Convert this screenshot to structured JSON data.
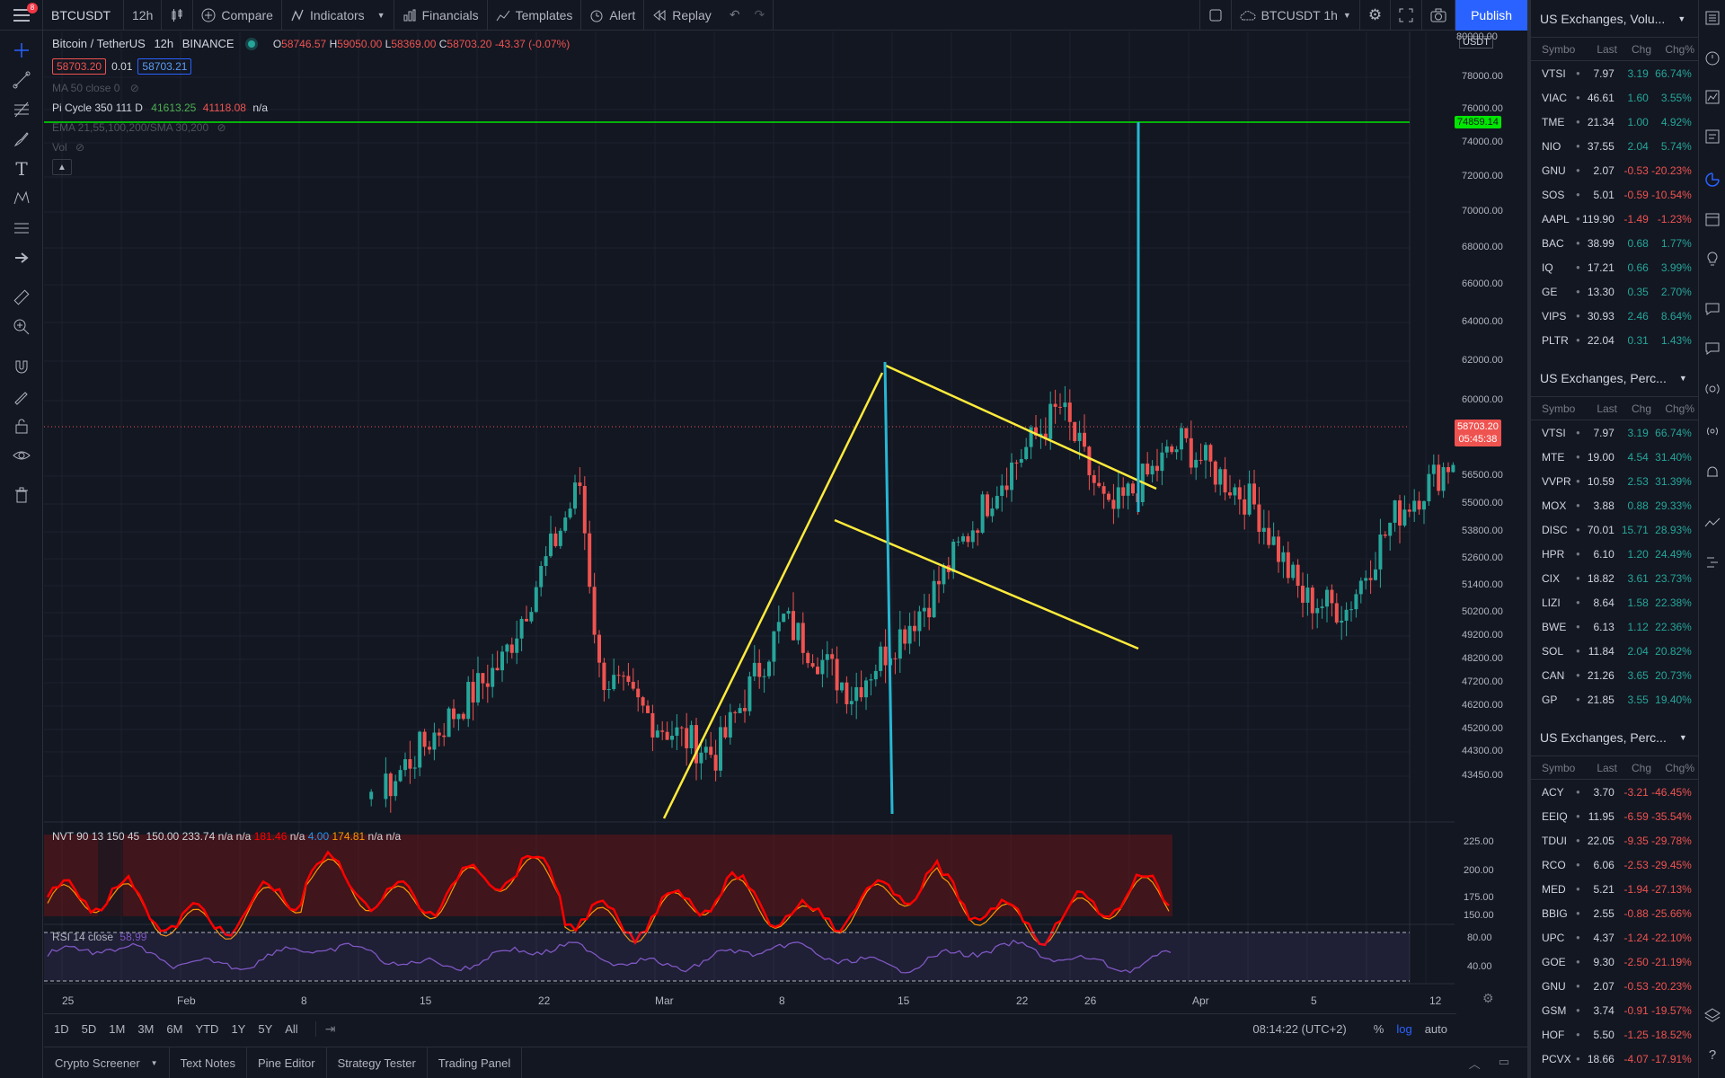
{
  "topbar": {
    "symbol": "BTCUSDT",
    "interval": "12h",
    "compare": "Compare",
    "indicators": "Indicators",
    "financials": "Financials",
    "templates": "Templates",
    "alert": "Alert",
    "replay": "Replay",
    "layout_name": "BTCUSDT 1h",
    "publish": "Publish",
    "notif_count": "8"
  },
  "legend": {
    "title": "Bitcoin / TetherUS",
    "interval": "12h",
    "exchange": "BINANCE",
    "o_label": "O",
    "o": "58746.57",
    "h_label": "H",
    "h": "59050.00",
    "l_label": "L",
    "l": "58369.00",
    "c_label": "C",
    "c": "58703.20",
    "change": "-43.37 (-0.07%)",
    "bid": "58703.20",
    "spread": "0.01",
    "ask": "58703.21",
    "ma": "MA 50 close 0",
    "pi_cycle": "Pi Cycle 350 111 D",
    "pi_v1": "41613.25",
    "pi_v2": "41118.08",
    "pi_v3": "n/a",
    "ema": "EMA 21,55,100,200/SMA 30,200",
    "vol": "Vol"
  },
  "nvt_legend": {
    "name": "NVT 90 13 150 45",
    "v1": "150.00",
    "v2": "233.74",
    "v3": "n/a",
    "v4": "n/a",
    "v5": "181.46",
    "v6": "n/a",
    "v7": "4.00",
    "v8": "174.81",
    "v9": "n/a",
    "v10": "n/a"
  },
  "rsi_legend": {
    "name": "RSI 14 close",
    "value": "58.99"
  },
  "price_axis": {
    "currency": "USDT",
    "ticks": [
      "78000.00",
      "76000.00",
      "74000.00",
      "72000.00",
      "70000.00",
      "68000.00",
      "66000.00",
      "64000.00",
      "62000.00",
      "60000.00",
      "56500.00",
      "55000.00",
      "53800.00",
      "52600.00",
      "51400.00",
      "50200.00",
      "49200.00",
      "48200.00",
      "47200.00",
      "46200.00",
      "45200.00",
      "44300.00",
      "43450.00"
    ],
    "top_tick": "80000.00",
    "green_line_label": "74859.14",
    "current_price": "58703.20",
    "countdown": "05:45:38"
  },
  "nvt_axis": [
    "225.00",
    "200.00",
    "175.00",
    "150.00"
  ],
  "rsi_axis": [
    "80.00",
    "40.00"
  ],
  "time_axis": [
    "25",
    "Feb",
    "8",
    "15",
    "22",
    "Mar",
    "8",
    "15",
    "22",
    "26",
    "Apr",
    "5",
    "12"
  ],
  "timeframes": [
    "1D",
    "5D",
    "1M",
    "3M",
    "6M",
    "YTD",
    "1Y",
    "5Y",
    "All"
  ],
  "clock": "08:14:22 (UTC+2)",
  "scale_opts": {
    "pct": "%",
    "log": "log",
    "auto": "auto"
  },
  "bottom_tabs": [
    "Crypto Screener",
    "Text Notes",
    "Pine Editor",
    "Strategy Tester",
    "Trading Panel"
  ],
  "watchlist_cols": {
    "sym": "Symbo",
    "last": "Last",
    "chg": "Chg",
    "pct": "Chg%"
  },
  "watchlists": [
    {
      "title": "US Exchanges, Volu...",
      "rows": [
        [
          "VTSI",
          "7.97",
          "3.19",
          "66.74%",
          "pos"
        ],
        [
          "VIAC",
          "46.61",
          "1.60",
          "3.55%",
          "pos"
        ],
        [
          "TME",
          "21.34",
          "1.00",
          "4.92%",
          "pos"
        ],
        [
          "NIO",
          "37.55",
          "2.04",
          "5.74%",
          "pos"
        ],
        [
          "GNU",
          "2.07",
          "-0.53",
          "-20.23%",
          "neg"
        ],
        [
          "SOS",
          "5.01",
          "-0.59",
          "-10.54%",
          "neg"
        ],
        [
          "AAPL",
          "119.90",
          "-1.49",
          "-1.23%",
          "neg"
        ],
        [
          "BAC",
          "38.99",
          "0.68",
          "1.77%",
          "pos"
        ],
        [
          "IQ",
          "17.21",
          "0.66",
          "3.99%",
          "pos"
        ],
        [
          "GE",
          "13.30",
          "0.35",
          "2.70%",
          "pos"
        ],
        [
          "VIPS",
          "30.93",
          "2.46",
          "8.64%",
          "pos"
        ],
        [
          "PLTR",
          "22.04",
          "0.31",
          "1.43%",
          "pos"
        ]
      ]
    },
    {
      "title": "US Exchanges, Perc...",
      "rows": [
        [
          "VTSI",
          "7.97",
          "3.19",
          "66.74%",
          "pos"
        ],
        [
          "MTE",
          "19.00",
          "4.54",
          "31.40%",
          "pos"
        ],
        [
          "VVPR",
          "10.59",
          "2.53",
          "31.39%",
          "pos"
        ],
        [
          "MOX",
          "3.88",
          "0.88",
          "29.33%",
          "pos"
        ],
        [
          "DISC",
          "70.01",
          "15.71",
          "28.93%",
          "pos"
        ],
        [
          "HPR",
          "6.10",
          "1.20",
          "24.49%",
          "pos"
        ],
        [
          "CIX",
          "18.82",
          "3.61",
          "23.73%",
          "pos"
        ],
        [
          "LIZI",
          "8.64",
          "1.58",
          "22.38%",
          "pos"
        ],
        [
          "BWE",
          "6.13",
          "1.12",
          "22.36%",
          "pos"
        ],
        [
          "SOL",
          "11.84",
          "2.04",
          "20.82%",
          "pos"
        ],
        [
          "CAN",
          "21.26",
          "3.65",
          "20.73%",
          "pos"
        ],
        [
          "GP",
          "21.85",
          "3.55",
          "19.40%",
          "pos"
        ]
      ]
    },
    {
      "title": "US Exchanges, Perc...",
      "rows": [
        [
          "ACY",
          "3.70",
          "-3.21",
          "-46.45%",
          "neg"
        ],
        [
          "EEIQ",
          "11.95",
          "-6.59",
          "-35.54%",
          "neg"
        ],
        [
          "TDUI",
          "22.05",
          "-9.35",
          "-29.78%",
          "neg"
        ],
        [
          "RCO",
          "6.06",
          "-2.53",
          "-29.45%",
          "neg"
        ],
        [
          "MED",
          "5.21",
          "-1.94",
          "-27.13%",
          "neg"
        ],
        [
          "BBIG",
          "2.55",
          "-0.88",
          "-25.66%",
          "neg"
        ],
        [
          "UPC",
          "4.37",
          "-1.24",
          "-22.10%",
          "neg"
        ],
        [
          "GOE",
          "9.30",
          "-2.50",
          "-21.19%",
          "neg"
        ],
        [
          "GNU",
          "2.07",
          "-0.53",
          "-20.23%",
          "neg"
        ],
        [
          "GSM",
          "3.74",
          "-0.91",
          "-19.57%",
          "neg"
        ],
        [
          "HOF",
          "5.50",
          "-1.25",
          "-18.52%",
          "neg"
        ],
        [
          "PCVX",
          "18.66",
          "-4.07",
          "-17.91%",
          "neg"
        ]
      ]
    }
  ],
  "colors": {
    "bg": "#131722",
    "up": "#26a69a",
    "down": "#ef5350",
    "yellow": "#ffeb3b",
    "cyan": "#26b7d3",
    "green_line": "#00e600",
    "accent": "#2962ff",
    "nvt_line": "#ff0000",
    "nvt_ma": "#ff9800",
    "rsi": "#7e57c2"
  }
}
